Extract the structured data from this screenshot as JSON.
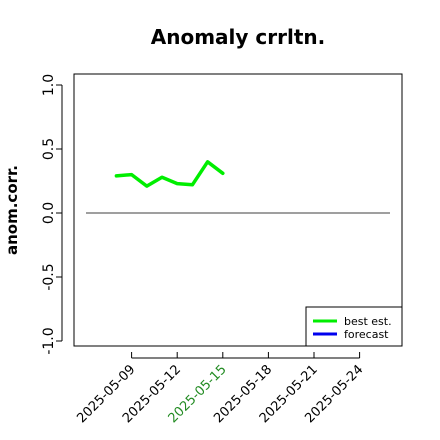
{
  "chart_data": {
    "type": "line",
    "title": "Anomaly crrltn.",
    "xlabel": "",
    "ylabel": "anom.corr.",
    "ylim": [
      -1.0,
      1.0
    ],
    "yticks": [
      -1.0,
      -0.5,
      0.0,
      0.5,
      1.0
    ],
    "ytick_labels": [
      "-1.0",
      "-0.5",
      "0.0",
      "0.5",
      "1.0"
    ],
    "xlim": [
      "2025-05-06",
      "2025-05-26"
    ],
    "xticks": [
      "2025-05-09",
      "2025-05-12",
      "2025-05-15",
      "2025-05-18",
      "2025-05-21",
      "2025-05-24"
    ],
    "xtick_labels": [
      "2025-05-09",
      "2025-05-12",
      "2025-05-15",
      "2025-05-18",
      "2025-05-21",
      "2025-05-24"
    ],
    "highlighted_xtick": "2025-05-15",
    "highlight_color": "#228B22",
    "reference_line": 0.0,
    "grid": false,
    "legend_position": "bottom-right",
    "series": [
      {
        "name": "best est.",
        "color": "#00EE00",
        "x": [
          "2025-05-08",
          "2025-05-09",
          "2025-05-10",
          "2025-05-11",
          "2025-05-12",
          "2025-05-13",
          "2025-05-14",
          "2025-05-15"
        ],
        "y": [
          0.29,
          0.3,
          0.21,
          0.28,
          0.23,
          0.22,
          0.4,
          0.31
        ]
      },
      {
        "name": "forecast",
        "color": "#0000EE",
        "x": [],
        "y": []
      }
    ]
  }
}
